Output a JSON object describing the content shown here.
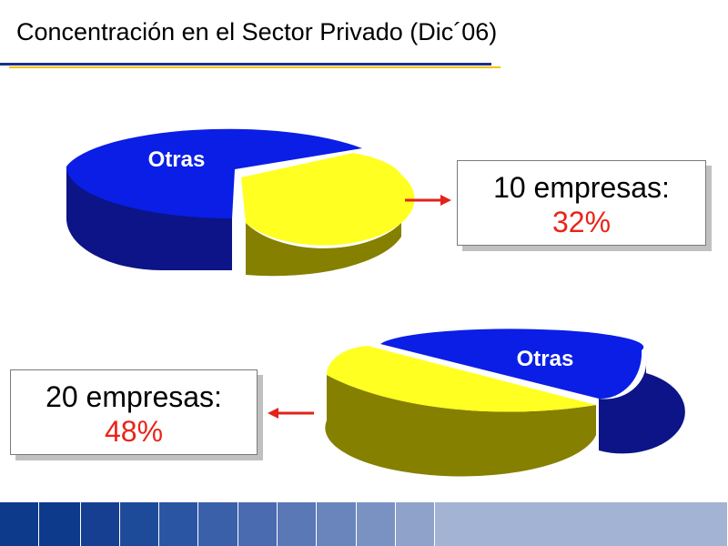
{
  "slide": {
    "title": "Concentración en el Sector Privado (Dic´06)"
  },
  "colors": {
    "blue_top": "#0a1ee6",
    "blue_side": "#0c1487",
    "yellow_top": "#ffff22",
    "olive_side": "#858000",
    "value_red": "#e8241a",
    "arrow_red": "#e2231a",
    "title_rule_blue": "#1a2f8a",
    "title_rule_yellow": "#f2c200"
  },
  "icons": {
    "top_arrow": "right-arrow-icon",
    "bottom_arrow": "left-arrow-icon"
  },
  "callouts": {
    "top": {
      "label": "10 empresas:",
      "value": "32%"
    },
    "bottom": {
      "label": "20 empresas:",
      "value": "48%"
    }
  },
  "chart_data": [
    {
      "type": "pie",
      "slices": [
        {
          "label": "10 empresas",
          "value": 32,
          "color": "#ffff22"
        },
        {
          "label": "Otras",
          "value": 68,
          "color": "#0a1ee6"
        }
      ],
      "exploded_slice": "10 empresas"
    },
    {
      "type": "pie",
      "slices": [
        {
          "label": "20 empresas",
          "value": 48,
          "color": "#ffff22"
        },
        {
          "label": "Otras",
          "value": 52,
          "color": "#0a1ee6"
        }
      ],
      "exploded_slice": "20 empresas"
    }
  ],
  "footer_band_colors": [
    "#0e3a8c",
    "#0e3a8c",
    "#163f92",
    "#1e4a9a",
    "#2a55a2",
    "#3a60aa",
    "#4a6bb0",
    "#5a77b6",
    "#6a84bc",
    "#7a92c2",
    "#8ea2ca",
    "#a2b3d4"
  ]
}
